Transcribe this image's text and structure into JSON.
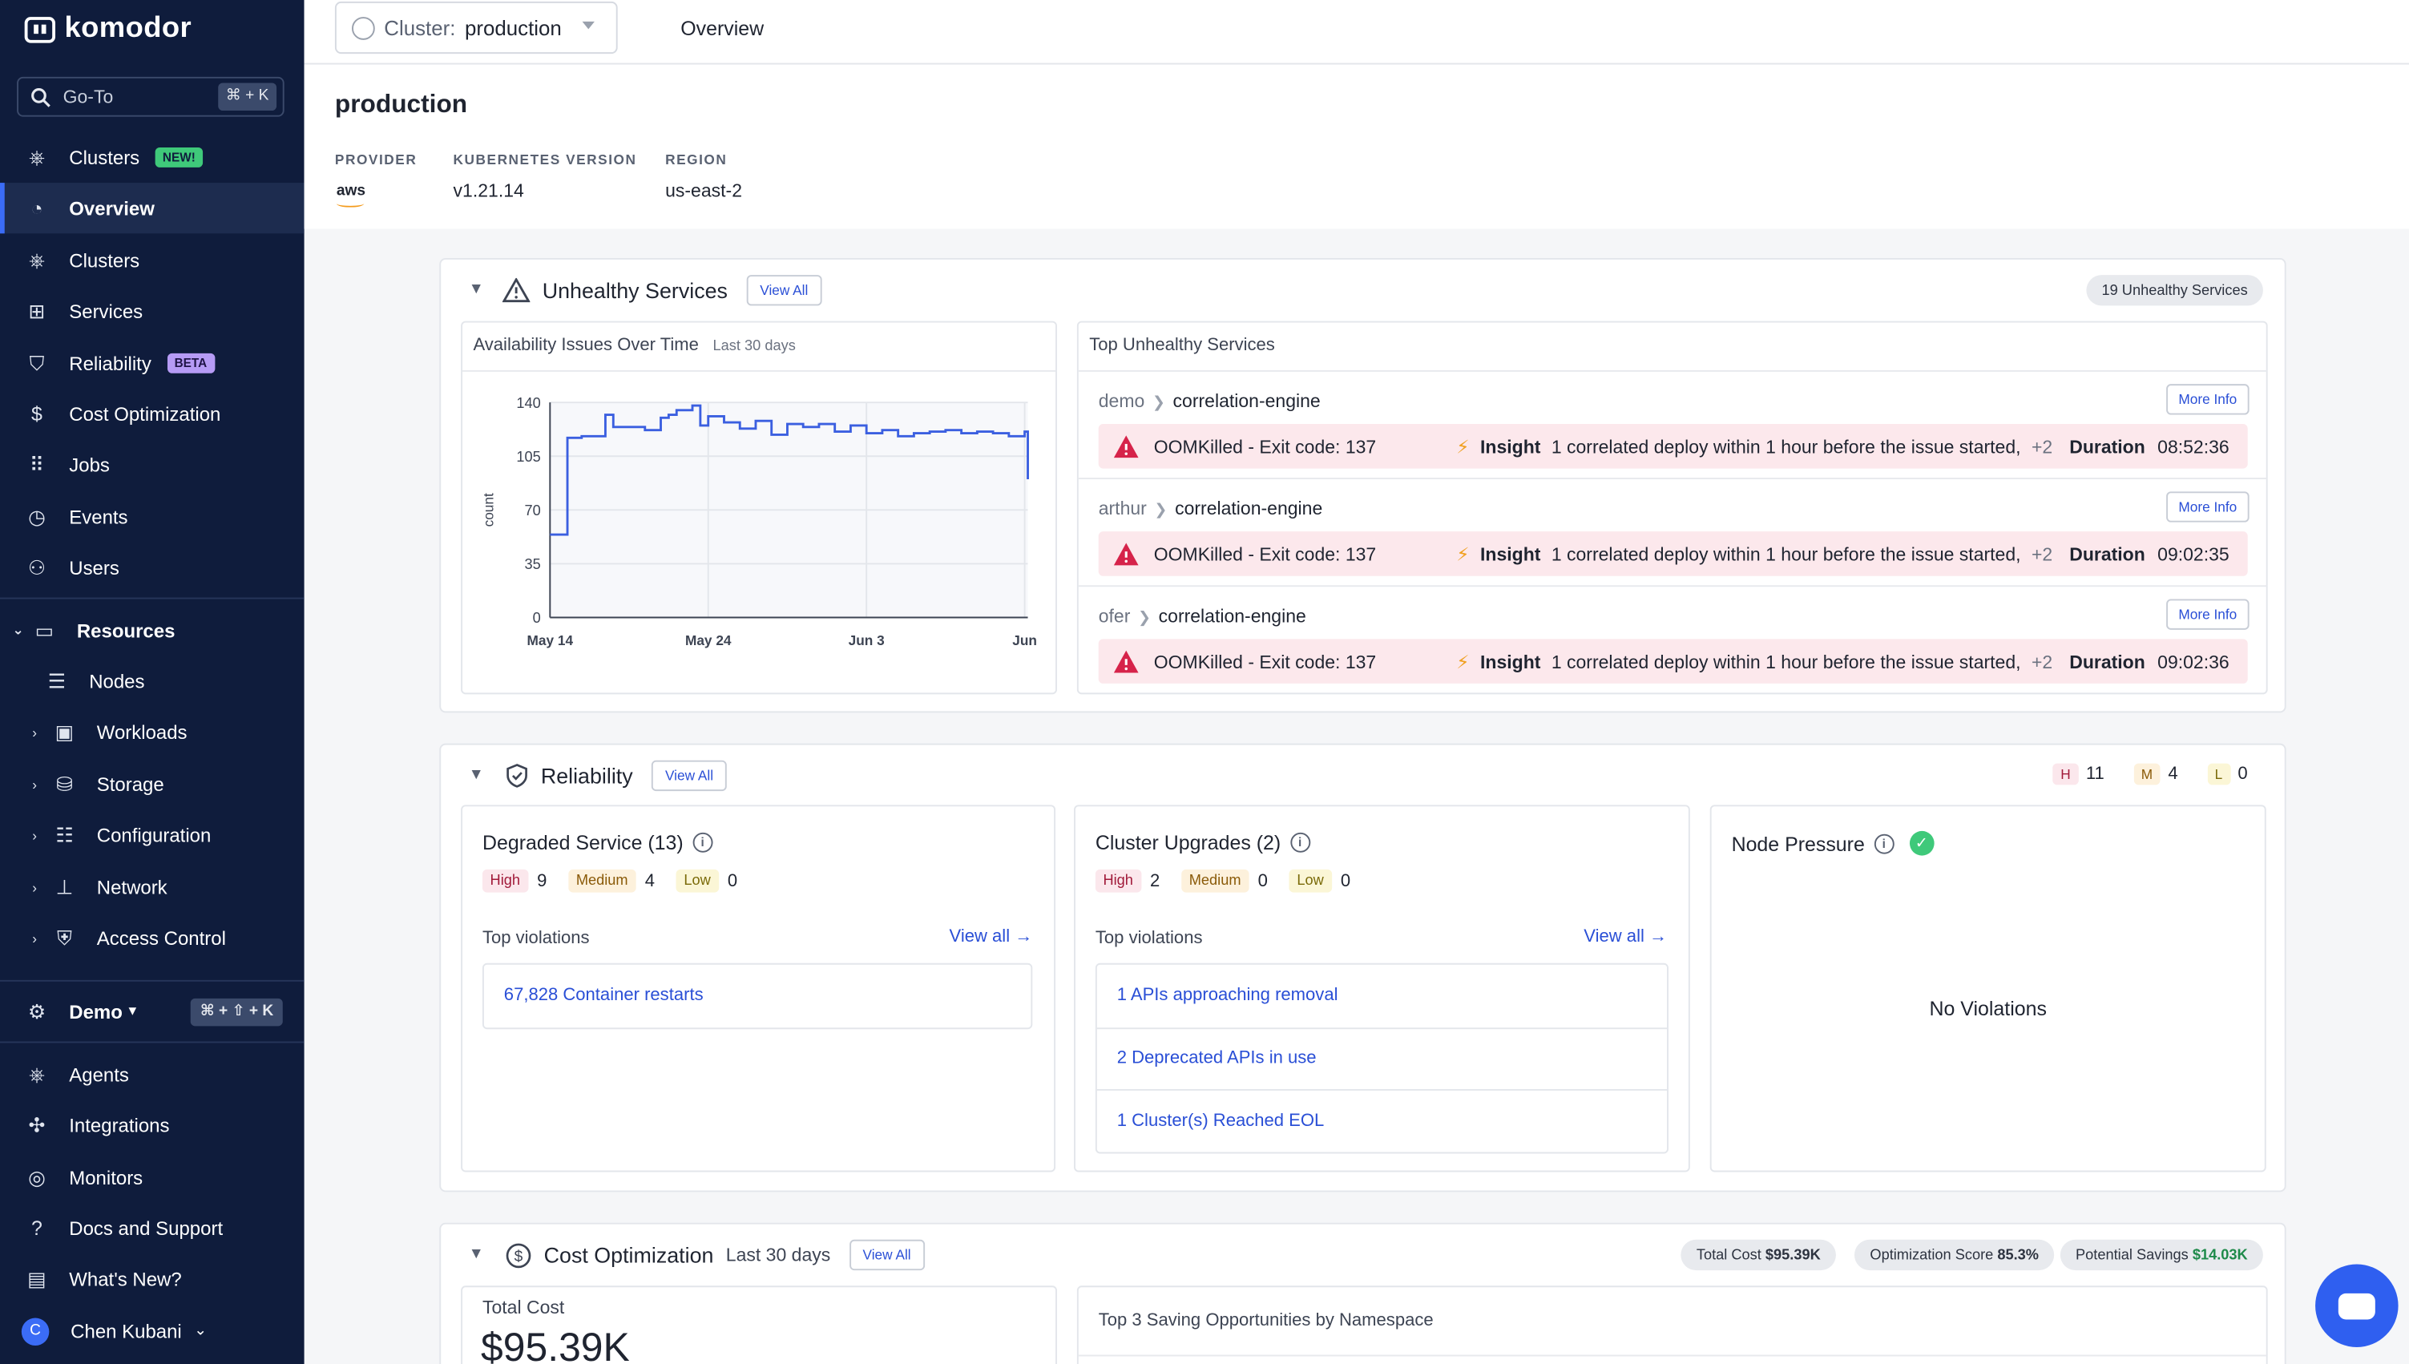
{
  "sidebar": {
    "brand": "komodor",
    "goto": {
      "label": "Go-To",
      "shortcut": "⌘ + K"
    },
    "items": [
      {
        "label": "Clusters",
        "badge": "NEW!"
      },
      {
        "label": "Overview"
      },
      {
        "label": "Clusters"
      },
      {
        "label": "Services"
      },
      {
        "label": "Reliability",
        "badge": "BETA"
      },
      {
        "label": "Cost Optimization"
      },
      {
        "label": "Jobs"
      },
      {
        "label": "Events"
      },
      {
        "label": "Users"
      }
    ],
    "resources": {
      "label": "Resources",
      "items": [
        "Nodes",
        "Workloads",
        "Storage",
        "Configuration",
        "Network",
        "Access Control"
      ]
    },
    "workspace": {
      "label": "Demo",
      "shortcut": "⌘ + ⇧ + K"
    },
    "bottom_items": [
      "Agents",
      "Integrations",
      "Monitors",
      "Docs and Support",
      "What's New?"
    ],
    "user": {
      "initial": "C",
      "name": "Chen Kubani"
    }
  },
  "topbar": {
    "cluster_label": "Cluster:",
    "cluster_value": "production",
    "tab": "Overview"
  },
  "header": {
    "title": "production",
    "provider_label": "PROVIDER",
    "provider_value": "aws",
    "k8s_label": "KUBERNETES VERSION",
    "k8s_value": "v1.21.14",
    "region_label": "REGION",
    "region_value": "us-east-2"
  },
  "unhealthy": {
    "title": "Unhealthy Services",
    "view_all": "View All",
    "count_pill": "19 Unhealthy Services",
    "chart_title": "Availability Issues Over Time",
    "chart_subtitle": "Last 30 days",
    "list_title": "Top Unhealthy Services",
    "rows": [
      {
        "ns": "demo",
        "service": "correlation-engine",
        "more": "More Info",
        "issue": "OOMKilled - Exit code: 137",
        "insight_label": "Insight",
        "insight": "1 correlated deploy within 1 hour before the issue started,",
        "plus": "+2",
        "duration_label": "Duration",
        "duration": "08:52:36"
      },
      {
        "ns": "arthur",
        "service": "correlation-engine",
        "more": "More Info",
        "issue": "OOMKilled - Exit code: 137",
        "insight_label": "Insight",
        "insight": "1 correlated deploy within 1 hour before the issue started,",
        "plus": "+2",
        "duration_label": "Duration",
        "duration": "09:02:35"
      },
      {
        "ns": "ofer",
        "service": "correlation-engine",
        "more": "More Info",
        "issue": "OOMKilled - Exit code: 137",
        "insight_label": "Insight",
        "insight": "1 correlated deploy within 1 hour before the issue started,",
        "plus": "+2",
        "duration_label": "Duration",
        "duration": "09:02:36"
      }
    ]
  },
  "chart_data": {
    "type": "line",
    "title": "Availability Issues Over Time",
    "subtitle": "Last 30 days",
    "xlabel": "",
    "ylabel": "count",
    "ylim": [
      0,
      140
    ],
    "yticks": [
      0,
      35,
      70,
      105,
      140
    ],
    "xtick_labels": [
      "May 14",
      "May 24",
      "Jun 3",
      "Jun"
    ],
    "x": [
      0,
      1,
      1.1,
      2,
      3,
      3.5,
      4,
      5,
      6,
      7,
      7.5,
      8,
      9,
      9.5,
      10,
      11,
      12,
      13,
      14,
      15,
      16,
      17,
      18,
      19,
      20,
      21,
      22,
      23,
      24,
      25,
      26,
      27,
      28,
      29,
      30,
      30.2
    ],
    "series": [
      {
        "name": "count",
        "values": [
          54,
          54,
          117,
          118,
          118,
          132,
          124,
          124,
          122,
          130,
          132,
          135,
          138,
          125,
          131,
          127,
          123,
          128,
          119,
          126,
          124,
          126,
          121,
          125,
          120,
          122,
          118,
          120,
          121,
          122,
          120,
          121,
          120,
          118,
          121,
          90
        ]
      }
    ]
  },
  "reliability": {
    "title": "Reliability",
    "view_all": "View All",
    "top": {
      "h": "H",
      "h_count": "11",
      "m": "M",
      "m_count": "4",
      "l": "L",
      "l_count": "0"
    },
    "degraded": {
      "title": "Degraded Service (13)",
      "high": "High",
      "high_count": "9",
      "medium": "Medium",
      "medium_count": "4",
      "low": "Low",
      "low_count": "0",
      "top_violations": "Top violations",
      "view_all": "View all →",
      "violations": [
        "67,828 Container restarts"
      ]
    },
    "upgrades": {
      "title": "Cluster Upgrades (2)",
      "high": "High",
      "high_count": "2",
      "medium": "Medium",
      "medium_count": "0",
      "low": "Low",
      "low_count": "0",
      "top_violations": "Top violations",
      "view_all": "View all →",
      "violations": [
        "1 APIs approaching removal",
        "2 Deprecated APIs in use",
        "1 Cluster(s) Reached EOL"
      ]
    },
    "node_pressure": {
      "title": "Node Pressure",
      "empty": "No Violations"
    }
  },
  "cost": {
    "title": "Cost Optimization",
    "subtitle": "Last 30 days",
    "view_all": "View All",
    "total_cost_pill_label": "Total Cost",
    "total_cost_pill_value": "$95.39K",
    "score_label": "Optimization Score",
    "score_value": "85.3%",
    "savings_label": "Potential Savings",
    "savings_value": "$14.03K",
    "total_cost_title": "Total Cost",
    "total_cost_big": "$95.39K",
    "saving_title": "Top 3 Saving Opportunities by Namespace"
  },
  "colors": {
    "sidebar": "#0f1c3c",
    "accent": "#2a4fd6",
    "issue_bg": "#fce8ec",
    "success": "#3fc97a"
  }
}
